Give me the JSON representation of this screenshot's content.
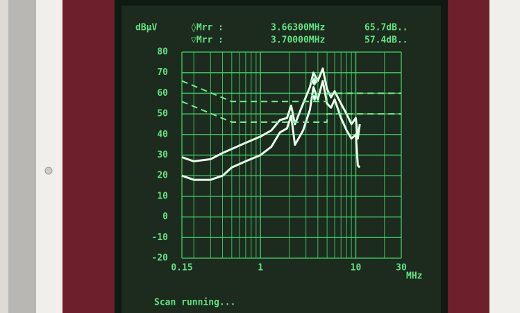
{
  "chart_data": {
    "type": "line",
    "y_unit": "dBµV",
    "x_unit": "MHz",
    "status": "Scan running...",
    "x_scale": "log",
    "grid": true,
    "xlim": [
      0.15,
      30
    ],
    "ylim": [
      -20,
      80
    ],
    "xticks": [
      0.15,
      1,
      10,
      30
    ],
    "minor_xticks": [
      0.2,
      0.3,
      0.4,
      0.5,
      0.6,
      0.7,
      0.8,
      0.9,
      2,
      3,
      4,
      5,
      6,
      7,
      8,
      9,
      20
    ],
    "yticks": [
      80,
      70,
      60,
      50,
      40,
      30,
      20,
      10,
      0,
      -10,
      -20
    ],
    "grid_color": "#3fd86a",
    "text_color": "#5fe383",
    "markers": [
      {
        "symbol": "◊Mrr  :",
        "x": 3.663,
        "x_label": "3.66300MHz",
        "y": 65.7,
        "y_label": "65.7dB.."
      },
      {
        "symbol": "▽Mrr  :",
        "x": 3.7,
        "x_label": "3.70000MHz",
        "y": 57.4,
        "y_label": "57.4dB.."
      }
    ],
    "series": [
      {
        "color": "#e4ffe8",
        "dash": false,
        "x": [
          0.15,
          0.2,
          0.3,
          0.4,
          0.5,
          0.7,
          1,
          1.3,
          1.6,
          1.9,
          2.1,
          2.3,
          2.8,
          3.3,
          3.6,
          4,
          4.5,
          5,
          5.5,
          6,
          7,
          8,
          9,
          10,
          10.5,
          11
        ],
        "values": [
          29,
          27,
          28,
          31,
          33,
          36,
          39,
          42,
          47,
          48,
          54,
          45,
          55,
          63,
          70,
          66,
          72,
          62,
          58,
          61,
          55,
          50,
          45,
          48,
          38,
          45
        ]
      },
      {
        "color": "#e4ffe8",
        "dash": false,
        "x": [
          0.15,
          0.2,
          0.3,
          0.4,
          0.5,
          0.7,
          1,
          1.3,
          1.6,
          1.9,
          2.1,
          2.3,
          2.8,
          3.3,
          3.6,
          4,
          4.5,
          5,
          5.5,
          6,
          7,
          8,
          9,
          10,
          10.5,
          11
        ],
        "values": [
          20,
          18,
          18,
          20,
          24,
          27,
          30,
          34,
          41,
          43,
          49,
          35,
          42,
          52,
          63,
          57,
          66,
          55,
          53,
          57,
          48,
          42,
          38,
          40,
          25,
          24
        ]
      },
      {
        "color": "#6ff08e",
        "dash": true,
        "x": [
          0.15,
          0.5,
          5,
          5,
          30
        ],
        "values": [
          66,
          56,
          56,
          60,
          60
        ]
      },
      {
        "color": "#6ff08e",
        "dash": true,
        "x": [
          0.15,
          0.5,
          5,
          5,
          30
        ],
        "values": [
          56,
          46,
          46,
          50,
          50
        ]
      }
    ]
  }
}
